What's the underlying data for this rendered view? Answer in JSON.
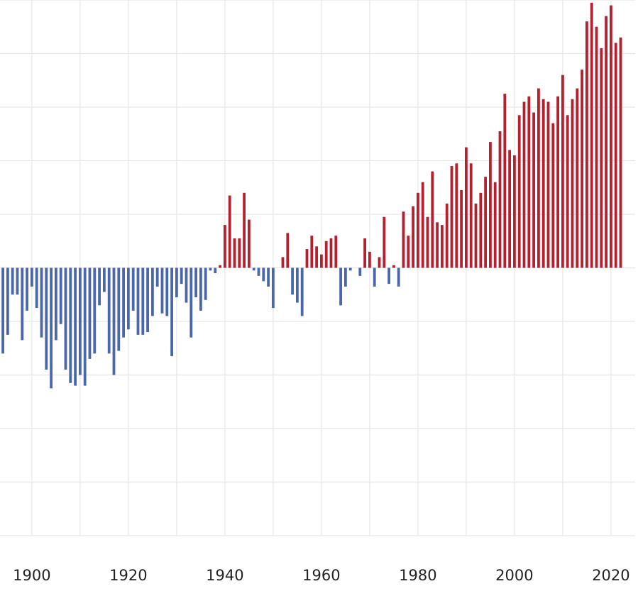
{
  "chart_data": {
    "type": "bar",
    "x": [
      1894,
      1895,
      1896,
      1897,
      1898,
      1899,
      1900,
      1901,
      1902,
      1903,
      1904,
      1905,
      1906,
      1907,
      1908,
      1909,
      1910,
      1911,
      1912,
      1913,
      1914,
      1915,
      1916,
      1917,
      1918,
      1919,
      1920,
      1921,
      1922,
      1923,
      1924,
      1925,
      1926,
      1927,
      1928,
      1929,
      1930,
      1931,
      1932,
      1933,
      1934,
      1935,
      1936,
      1937,
      1938,
      1939,
      1940,
      1941,
      1942,
      1943,
      1944,
      1945,
      1946,
      1947,
      1948,
      1949,
      1950,
      1951,
      1952,
      1953,
      1954,
      1955,
      1956,
      1957,
      1958,
      1959,
      1960,
      1961,
      1962,
      1963,
      1964,
      1965,
      1966,
      1967,
      1968,
      1969,
      1970,
      1971,
      1972,
      1973,
      1974,
      1975,
      1976,
      1977,
      1978,
      1979,
      1980,
      1981,
      1982,
      1983,
      1984,
      1985,
      1986,
      1987,
      1988,
      1989,
      1990,
      1991,
      1992,
      1993,
      1994,
      1995,
      1996,
      1997,
      1998,
      1999,
      2000,
      2001,
      2002,
      2003,
      2004,
      2005,
      2006,
      2007,
      2008,
      2009,
      2010,
      2011,
      2012,
      2013,
      2014,
      2015,
      2016,
      2017,
      2018,
      2019,
      2020,
      2021,
      2022
    ],
    "values": [
      -0.32,
      -0.25,
      -0.1,
      -0.1,
      -0.27,
      -0.16,
      -0.07,
      -0.15,
      -0.26,
      -0.38,
      -0.45,
      -0.27,
      -0.21,
      -0.38,
      -0.43,
      -0.44,
      -0.4,
      -0.44,
      -0.34,
      -0.32,
      -0.14,
      -0.09,
      -0.32,
      -0.4,
      -0.31,
      -0.26,
      -0.23,
      -0.16,
      -0.25,
      -0.25,
      -0.24,
      -0.18,
      -0.07,
      -0.17,
      -0.18,
      -0.33,
      -0.11,
      -0.06,
      -0.13,
      -0.26,
      -0.11,
      -0.16,
      -0.12,
      -0.01,
      -0.02,
      0.01,
      0.16,
      0.27,
      0.11,
      0.11,
      0.28,
      0.18,
      -0.01,
      -0.03,
      -0.05,
      -0.07,
      -0.15,
      0,
      0.04,
      0.13,
      -0.1,
      -0.13,
      -0.18,
      0.07,
      0.12,
      0.08,
      0.05,
      0.1,
      0.11,
      0.12,
      -0.14,
      -0.07,
      -0.01,
      0,
      -0.03,
      0.11,
      0.06,
      -0.07,
      0.04,
      0.19,
      -0.06,
      0.01,
      -0.07,
      0.21,
      0.12,
      0.23,
      0.28,
      0.32,
      0.19,
      0.36,
      0.17,
      0.16,
      0.24,
      0.38,
      0.39,
      0.29,
      0.45,
      0.39,
      0.24,
      0.28,
      0.34,
      0.47,
      0.32,
      0.51,
      0.65,
      0.44,
      0.42,
      0.57,
      0.62,
      0.64,
      0.58,
      0.67,
      0.63,
      0.62,
      0.54,
      0.64,
      0.72,
      0.57,
      0.63,
      0.67,
      0.74,
      0.92,
      0.99,
      0.9,
      0.82,
      0.94,
      0.98,
      0.84,
      0.86
    ],
    "positive_color": "#b5202e",
    "negative_color": "#4a66ac",
    "xlim": [
      1893.4,
      2025.6
    ],
    "xticks": [
      1900,
      1920,
      1940,
      1960,
      1980,
      2000,
      2020
    ],
    "xticks_minor": [
      1910,
      1930,
      1950,
      1970,
      1990,
      2010
    ],
    "ylim": [
      -1,
      1
    ],
    "yticks": [
      -1,
      -0.8,
      -0.6,
      -0.4,
      -0.2,
      0,
      0.2,
      0.4,
      0.6,
      0.8,
      1
    ],
    "grid": true
  }
}
